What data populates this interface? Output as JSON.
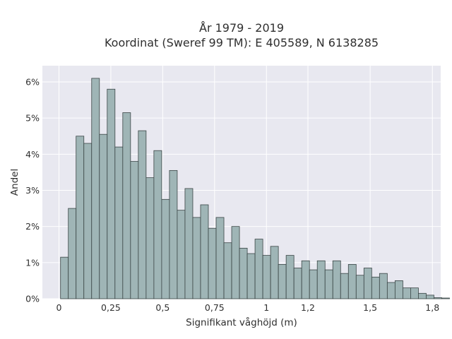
{
  "chart_data": {
    "type": "bar",
    "title": "År 1979 - 2019",
    "subtitle": "Koordinat (Sweref 99 TM): E 405589, N 6138285",
    "xlabel": "Signifikant våghöjd (m)",
    "ylabel": "Andel",
    "xlim": [
      -0.08,
      1.84
    ],
    "ylim": [
      0,
      6.45
    ],
    "x_ticks": [
      0,
      0.25,
      0.5,
      0.75,
      1,
      1.2,
      1.5,
      1.8
    ],
    "x_tick_labels": [
      "0",
      "0,25",
      "0,5",
      "0,75",
      "1",
      "1,2",
      "1,5",
      "1,8"
    ],
    "y_ticks": [
      0,
      1,
      2,
      3,
      4,
      5,
      6
    ],
    "y_tick_labels": [
      "0%",
      "1%",
      "2%",
      "3%",
      "4%",
      "5%",
      "6%"
    ],
    "bin_width": 0.0375,
    "bin_start": 0.0075,
    "values": [
      1.15,
      2.5,
      4.5,
      4.3,
      6.1,
      4.55,
      5.8,
      4.2,
      5.15,
      3.8,
      4.65,
      3.35,
      4.1,
      2.75,
      3.55,
      2.45,
      3.05,
      2.25,
      2.6,
      1.95,
      2.25,
      1.55,
      2.0,
      1.4,
      1.25,
      1.65,
      1.2,
      1.45,
      0.95,
      1.2,
      0.85,
      1.05,
      0.8,
      1.05,
      0.8,
      1.05,
      0.7,
      0.95,
      0.65,
      0.85,
      0.6,
      0.7,
      0.45,
      0.5,
      0.3,
      0.3,
      0.15,
      0.1,
      0.03,
      0.02
    ],
    "grid": true,
    "legend": "none",
    "colors": {
      "bar_fill": "#9fb5b6",
      "bar_edge": "#3a4545",
      "plot_bg": "#e8e8f0",
      "grid": "#ffffff"
    }
  }
}
